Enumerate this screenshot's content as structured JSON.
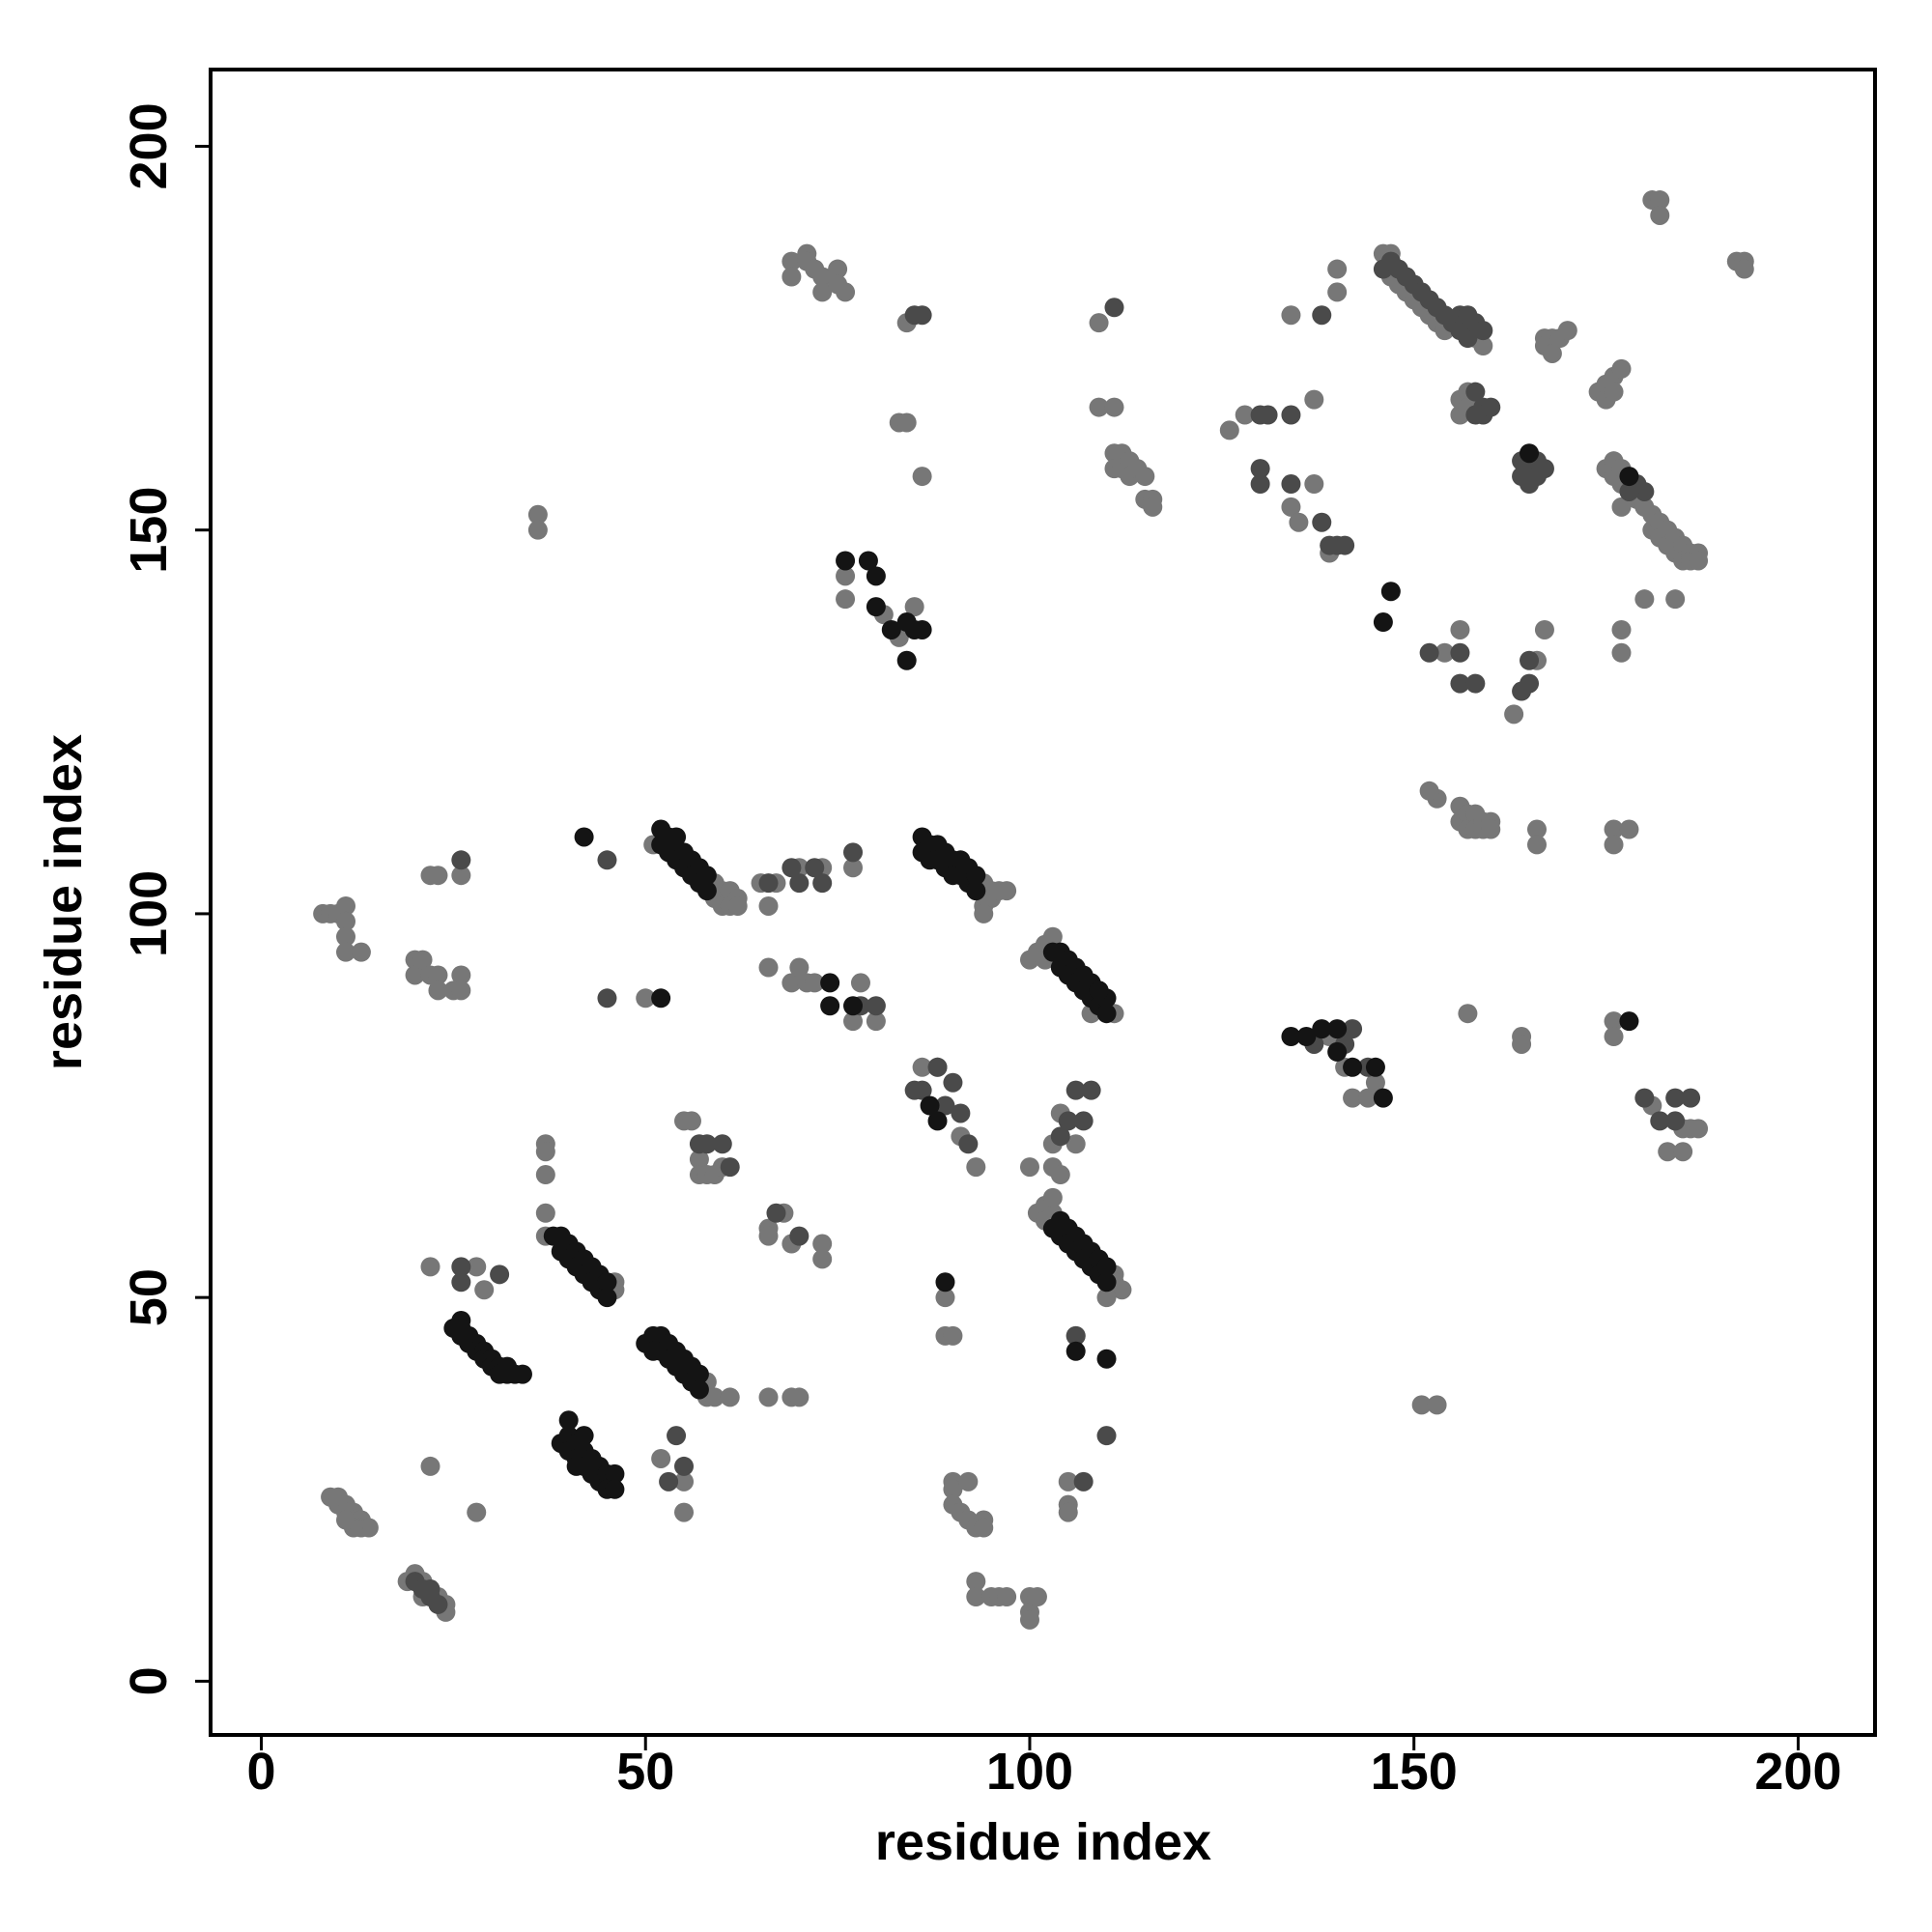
{
  "chart_data": {
    "type": "scatter",
    "xlabel": "residue index",
    "ylabel": "residue index",
    "xlim": [
      -6.6,
      210
    ],
    "ylim": [
      -7,
      210
    ],
    "xticks": [
      0,
      50,
      100,
      150,
      200
    ],
    "yticks": [
      0,
      50,
      100,
      150,
      200
    ],
    "grid": false,
    "series": [
      {
        "color": "#777777",
        "x": [
          9,
          10,
          10,
          11,
          11,
          12,
          12,
          13,
          13,
          14,
          12,
          11,
          20,
          19,
          21,
          21,
          24,
          24,
          23,
          37,
          37,
          37,
          37,
          37,
          46,
          46,
          58,
          58,
          59,
          61,
          52,
          55,
          55,
          51,
          59,
          59,
          60,
          60,
          61,
          61,
          62,
          62,
          94,
          94,
          95,
          95,
          96,
          97,
          94,
          100,
          101,
          102,
          102,
          103,
          111,
          108,
          101,
          102,
          102,
          103,
          111,
          111,
          112,
          110,
          147,
          146,
          147,
          148,
          149,
          150,
          151,
          152,
          153,
          154,
          158,
          159,
          175,
          176,
          176,
          177,
          177,
          179,
          180,
          181,
          181,
          182,
          182,
          183,
          183,
          184,
          184,
          185,
          185,
          186,
          186,
          187,
          187,
          177,
          111,
          111,
          112,
          112,
          113,
          113,
          114,
          115,
          115,
          116,
          116,
          156,
          156,
          157,
          157,
          167,
          167,
          168,
          168,
          169,
          170,
          174,
          175,
          175,
          176,
          176,
          177,
          153,
          152,
          156,
          156,
          157,
          157,
          158,
          158,
          159,
          159,
          160,
          160,
          69,
          69,
          71,
          71,
          72,
          73,
          73,
          75,
          75,
          76,
          84,
          83,
          84,
          86,
          76,
          76,
          81,
          83,
          85,
          109,
          109,
          111,
          126,
          128,
          134,
          135,
          134,
          137,
          137,
          139,
          163,
          166,
          167,
          166,
          166,
          180,
          184,
          177,
          177,
          176,
          176,
          178,
          156,
          154,
          181,
          182,
          182,
          192,
          193,
          193,
          140,
          140,
          157,
          164,
          164,
          176,
          176,
          151,
          153,
          8,
          9,
          10,
          11,
          11,
          11,
          11,
          13,
          20,
          20,
          21,
          22,
          23,
          23,
          25,
          26,
          26,
          22,
          23,
          26,
          50,
          22,
          28,
          29,
          22,
          28,
          36,
          36,
          55,
          56,
          57,
          57,
          58,
          59,
          60,
          65,
          66,
          67,
          70,
          73,
          77,
          66,
          69,
          70,
          71,
          72,
          77,
          78,
          80,
          66,
          66,
          68,
          69,
          73,
          73,
          66,
          69,
          70,
          86,
          88,
          89,
          89,
          90,
          91,
          93,
          90,
          90,
          90,
          91,
          92,
          92,
          93,
          94,
          94,
          93,
          93,
          95,
          96,
          97,
          100,
          100,
          100,
          101,
          100,
          103,
          103,
          103,
          104,
          104,
          106,
          106,
          105,
          105,
          105,
          181,
          183,
          185,
          185,
          186,
          187,
          142,
          144,
          145,
          141,
          139
        ],
        "y": [
          24,
          24,
          23,
          23,
          22,
          22,
          21,
          21,
          20,
          20,
          20,
          21,
          14,
          13,
          13,
          11,
          10,
          9,
          11,
          70,
          69,
          66,
          61,
          58,
          52,
          51,
          39,
          37,
          37,
          37,
          29,
          26,
          22,
          109,
          104,
          102,
          103,
          101,
          103,
          101,
          102,
          101,
          104,
          101,
          103,
          102,
          103,
          103,
          100,
          94,
          95,
          96,
          94,
          97,
          87,
          87,
          61,
          62,
          60,
          61,
          53,
          52,
          51,
          50,
          186,
          186,
          183,
          182,
          181,
          180,
          179,
          178,
          177,
          176,
          175,
          174,
          158,
          159,
          157,
          158,
          156,
          154,
          153,
          152,
          150,
          151,
          149,
          150,
          148,
          149,
          147,
          148,
          146,
          147,
          146,
          147,
          146,
          153,
          160,
          158,
          160,
          158,
          159,
          157,
          158,
          157,
          154,
          154,
          153,
          167,
          165,
          168,
          166,
          175,
          174,
          175,
          173,
          175,
          176,
          168,
          169,
          167,
          170,
          168,
          171,
          115,
          116,
          114,
          112,
          113,
          111,
          113,
          111,
          112,
          111,
          112,
          111,
          185,
          183,
          186,
          185,
          184,
          183,
          181,
          184,
          182,
          181,
          177,
          164,
          164,
          157,
          144,
          141,
          139,
          136,
          140,
          177,
          166,
          166,
          163,
          165,
          153,
          151,
          178,
          167,
          156,
          147,
          126,
          133,
          137,
          111,
          109,
          141,
          141,
          137,
          134,
          111,
          109,
          111,
          137,
          134,
          193,
          193,
          191,
          185,
          185,
          184,
          184,
          181,
          87,
          84,
          83,
          86,
          84,
          36,
          36,
          100,
          100,
          100,
          101,
          99,
          97,
          95,
          95,
          94,
          92,
          94,
          92,
          92,
          90,
          90,
          92,
          90,
          105,
          105,
          105,
          89,
          54,
          54,
          51,
          28,
          22,
          152,
          150,
          73,
          73,
          68,
          66,
          66,
          66,
          67,
          104,
          101,
          104,
          106,
          106,
          106,
          93,
          91,
          93,
          91,
          91,
          86,
          91,
          86,
          59,
          58,
          61,
          57,
          57,
          55,
          37,
          37,
          37,
          80,
          80,
          50,
          45,
          45,
          71,
          67,
          26,
          25,
          23,
          22,
          26,
          21,
          20,
          21,
          20,
          13,
          11,
          11,
          11,
          11,
          11,
          9,
          8,
          11,
          67,
          67,
          63,
          70,
          66,
          74,
          70,
          45,
          26,
          23,
          22,
          75,
          69,
          72,
          69,
          72,
          72,
          76,
          76,
          78,
          80,
          84
        ]
      },
      {
        "color": "#4a4a4a",
        "x": [
          146,
          147,
          148,
          149,
          150,
          151,
          152,
          153,
          154,
          155,
          156,
          156,
          157,
          157,
          158,
          159,
          164,
          164,
          165,
          165,
          166,
          166,
          167,
          158,
          158,
          159,
          159,
          160,
          130,
          130,
          130,
          131,
          134,
          138,
          139,
          140,
          141,
          138,
          134,
          152,
          156,
          156,
          158,
          164,
          165,
          165,
          57,
          58,
          61,
          60,
          66,
          70,
          73,
          77,
          78,
          80,
          85,
          86,
          88,
          89,
          90,
          91,
          92,
          104,
          105,
          106,
          107,
          108,
          106,
          110,
          107,
          20,
          21,
          22,
          23,
          22,
          26,
          26,
          31,
          54,
          55,
          53,
          26,
          45,
          45,
          69,
          72,
          67,
          70,
          85,
          86,
          111,
          180,
          182,
          184,
          186,
          184,
          142,
          144,
          141,
          137,
          180,
          179,
          178
        ],
        "y": [
          184,
          185,
          184,
          183,
          182,
          181,
          180,
          179,
          178,
          177,
          178,
          176,
          178,
          175,
          177,
          176,
          159,
          157,
          158,
          156,
          159,
          157,
          158,
          168,
          165,
          166,
          165,
          166,
          165,
          158,
          156,
          165,
          156,
          151,
          148,
          148,
          148,
          178,
          165,
          134,
          134,
          130,
          130,
          129,
          133,
          130,
          70,
          70,
          67,
          70,
          104,
          104,
          104,
          108,
          88,
          88,
          77,
          77,
          80,
          75,
          78,
          74,
          70,
          71,
          73,
          77,
          73,
          77,
          45,
          32,
          26,
          13,
          12,
          11,
          10,
          12,
          54,
          52,
          53,
          32,
          28,
          26,
          107,
          107,
          89,
          106,
          106,
          61,
          58,
          178,
          178,
          179,
          76,
          73,
          76,
          76,
          73,
          85,
          80,
          83,
          83,
          155,
          156,
          155
        ]
      },
      {
        "color": "#141414",
        "x": [
          25,
          26,
          26,
          26,
          27,
          27,
          28,
          28,
          29,
          29,
          30,
          30,
          31,
          31,
          32,
          32,
          33,
          34,
          39,
          40,
          40,
          40,
          41,
          41,
          41,
          42,
          42,
          42,
          43,
          43,
          44,
          44,
          45,
          45,
          46,
          46,
          38,
          39,
          39,
          40,
          40,
          41,
          41,
          42,
          42,
          43,
          43,
          44,
          44,
          45,
          45,
          50,
          51,
          51,
          52,
          52,
          53,
          53,
          54,
          54,
          55,
          55,
          56,
          56,
          57,
          57,
          52,
          52,
          53,
          53,
          54,
          54,
          55,
          55,
          56,
          56,
          57,
          57,
          58,
          58,
          86,
          86,
          87,
          87,
          88,
          88,
          89,
          89,
          90,
          90,
          91,
          91,
          92,
          92,
          93,
          93,
          103,
          104,
          104,
          105,
          105,
          106,
          106,
          107,
          107,
          108,
          108,
          109,
          109,
          110,
          110,
          103,
          104,
          104,
          105,
          105,
          106,
          106,
          107,
          107,
          108,
          108,
          109,
          109,
          110,
          110,
          76,
          79,
          80,
          80,
          82,
          84,
          84,
          85,
          86,
          134,
          136,
          138,
          140,
          140,
          142,
          145,
          146,
          42,
          52,
          74,
          74,
          77,
          87,
          88,
          89,
          110,
          109,
          147,
          146,
          165,
          178,
          178,
          106
        ],
        "y": [
          46,
          47,
          46,
          45,
          45,
          44,
          44,
          43,
          43,
          42,
          42,
          41,
          41,
          40,
          41,
          40,
          40,
          40,
          31,
          32,
          34,
          30,
          31,
          29,
          28,
          32,
          30,
          28,
          29,
          27,
          28,
          26,
          27,
          25,
          27,
          25,
          58,
          58,
          56,
          57,
          55,
          56,
          54,
          55,
          53,
          54,
          52,
          53,
          51,
          52,
          50,
          44,
          45,
          43,
          45,
          43,
          44,
          42,
          43,
          41,
          42,
          40,
          41,
          39,
          40,
          38,
          111,
          109,
          110,
          108,
          110,
          107,
          108,
          106,
          107,
          105,
          106,
          104,
          105,
          103,
          110,
          108,
          109,
          107,
          109,
          107,
          108,
          106,
          107,
          105,
          107,
          105,
          106,
          104,
          105,
          103,
          95,
          93,
          95,
          94,
          92,
          93,
          91,
          92,
          90,
          91,
          89,
          90,
          88,
          89,
          87,
          59,
          60,
          58,
          59,
          57,
          58,
          56,
          57,
          55,
          56,
          54,
          55,
          53,
          54,
          52,
          146,
          146,
          144,
          140,
          137,
          138,
          133,
          137,
          137,
          84,
          84,
          85,
          85,
          82,
          80,
          80,
          76,
          110,
          89,
          91,
          88,
          88,
          75,
          73,
          52,
          42,
          90,
          142,
          138,
          160,
          157,
          86,
          43
        ]
      }
    ]
  }
}
